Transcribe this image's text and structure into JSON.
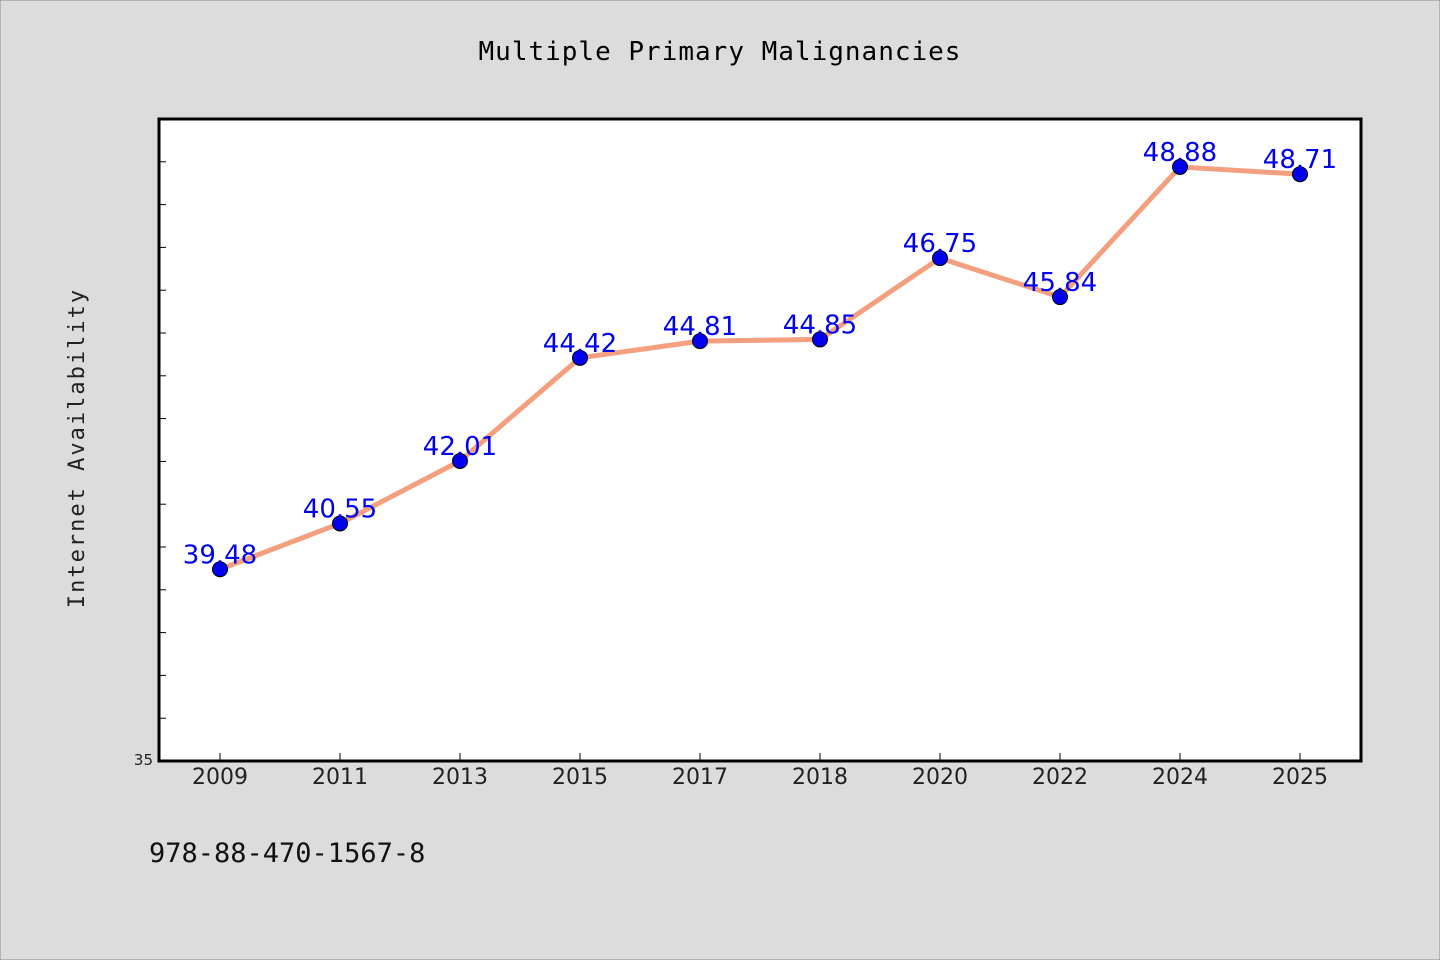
{
  "chart_data": {
    "type": "line",
    "title": "Multiple Primary Malignancies",
    "ylabel": "Internet Availability",
    "xlabel": "",
    "categories": [
      "2009",
      "2011",
      "2013",
      "2015",
      "2017",
      "2018",
      "2020",
      "2022",
      "2024",
      "2025"
    ],
    "series": [
      {
        "values": [
          39.48,
          40.55,
          42.01,
          44.42,
          44.81,
          44.85,
          46.75,
          45.84,
          48.88,
          48.71
        ],
        "data_labels": [
          "39.48",
          "40.55",
          "42.01",
          "44.42",
          "44.81",
          "44.85",
          "46.75",
          "45.84",
          "48.88",
          "48.71"
        ],
        "line_color": "#f4a07f",
        "marker_color": "#0000ee"
      }
    ],
    "ylim": [
      35,
      50
    ],
    "yticks_labeled": [
      "35"
    ],
    "grid": false,
    "legend": "none"
  },
  "footer": {
    "code": "978-88-470-1567-8"
  },
  "colors": {
    "background": "#dcdcdc",
    "plot_background": "#ffffff",
    "label_color": "#0000ee"
  }
}
